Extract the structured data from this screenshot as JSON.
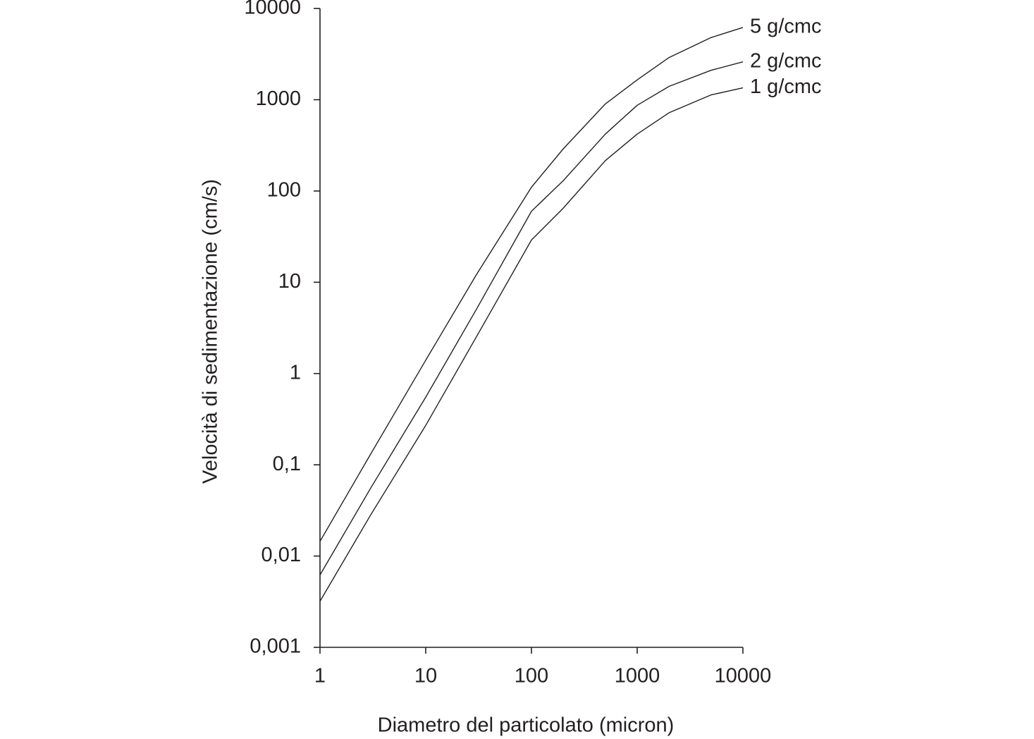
{
  "chart_data": {
    "type": "line",
    "xlabel": "Diametro del particolato (micron)",
    "ylabel": "Velocità di sedimentazione (cm/s)",
    "x": [
      1,
      3,
      10,
      30,
      100,
      200,
      500,
      1000,
      2000,
      5000,
      10000
    ],
    "series": [
      {
        "name": "5 g/cmc",
        "color": "#231f20",
        "values": [
          0.0145,
          0.13,
          1.4,
          12,
          110,
          290,
          900,
          1650,
          2900,
          4800,
          6200
        ]
      },
      {
        "name": "2 g/cmc",
        "color": "#231f20",
        "values": [
          0.0062,
          0.055,
          0.55,
          5,
          60,
          130,
          420,
          870,
          1400,
          2100,
          2600
        ]
      },
      {
        "name": "1 g/cmc",
        "color": "#231f20",
        "values": [
          0.0032,
          0.028,
          0.27,
          2.5,
          29,
          65,
          215,
          420,
          720,
          1130,
          1350
        ]
      }
    ],
    "xscale": "log",
    "yscale": "log",
    "xlim": [
      1,
      10000
    ],
    "xticks": [
      1,
      10,
      100,
      1000,
      10000
    ],
    "ylim": [
      0.001,
      10000
    ],
    "yticks": [
      {
        "value": 0.001,
        "label": "0,001"
      },
      {
        "value": 0.01,
        "label": "0,01"
      },
      {
        "value": 0.1,
        "label": "0,1"
      },
      1,
      10,
      100,
      1000,
      10000
    ],
    "grid": false
  }
}
